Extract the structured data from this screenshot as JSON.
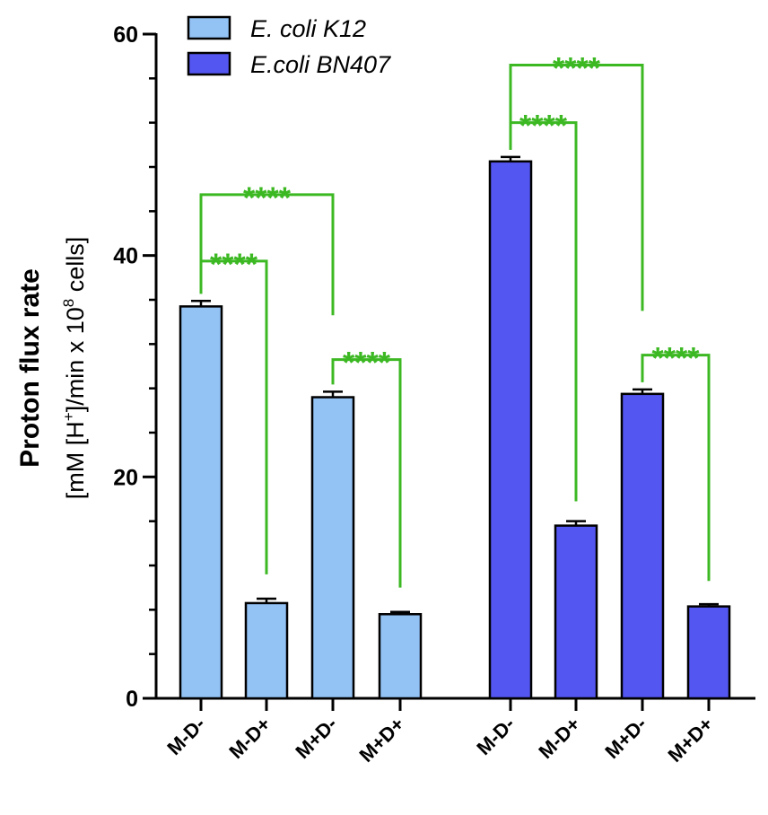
{
  "chart_data": {
    "type": "bar",
    "title": "",
    "xlabel": "",
    "ylabel": "Proton flux rate",
    "ylabel_units": {
      "prefix": "[mM [H",
      "sup1": "+",
      "middle": "]/min x 10",
      "sup2": "8",
      "suffix": " cells]"
    },
    "ylim": [
      0,
      60
    ],
    "yticks": [
      "0",
      "20",
      "40",
      "60"
    ],
    "categories": [
      "M-D-",
      "M-D+",
      "M+D-",
      "M+D+"
    ],
    "series": [
      {
        "name": "E. coli K12",
        "color": "#93c2f5",
        "values": [
          35.4,
          8.6,
          27.2,
          7.6
        ],
        "errors": [
          0.5,
          0.4,
          0.5,
          0.2
        ]
      },
      {
        "name": "E.coli BN407",
        "color": "#5456f2",
        "values": [
          48.5,
          15.6,
          27.5,
          8.3
        ],
        "errors": [
          0.4,
          0.4,
          0.4,
          0.2
        ]
      }
    ],
    "significance": {
      "color": "#3cb823",
      "label": "****",
      "brackets": [
        {
          "series": 0,
          "from": 0,
          "to": 1,
          "level": 39.5,
          "right_end": 11.2
        },
        {
          "series": 0,
          "from": 0,
          "to": 2,
          "level": 45.5,
          "right_end": 34.6
        },
        {
          "series": 0,
          "from": 2,
          "to": 3,
          "level": 30.6,
          "right_end": 10.0
        },
        {
          "series": 1,
          "from": 0,
          "to": 1,
          "level": 52.0,
          "right_end": 17.8
        },
        {
          "series": 1,
          "from": 0,
          "to": 2,
          "level": 57.2,
          "right_end": 35.0
        },
        {
          "series": 1,
          "from": 2,
          "to": 3,
          "level": 31.0,
          "right_end": 10.6
        }
      ]
    },
    "legend_position": "top"
  }
}
